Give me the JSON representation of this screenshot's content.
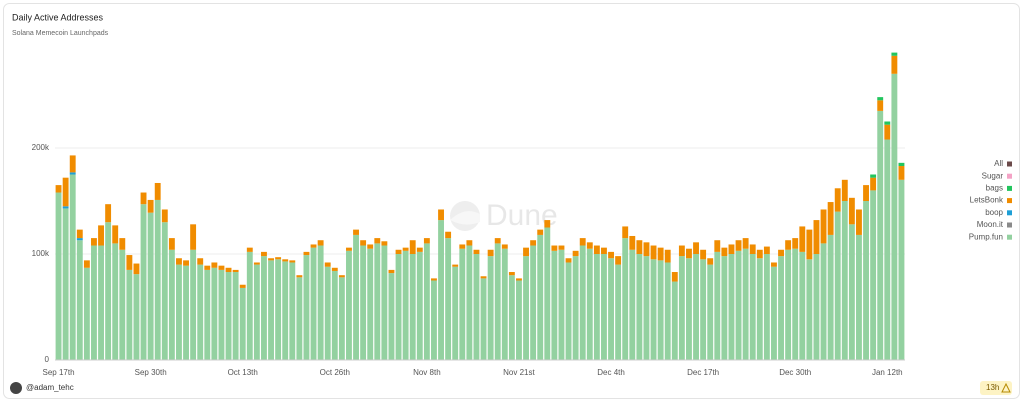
{
  "chart_data": {
    "type": "stacked-bar",
    "title": "Daily Active Addresses",
    "subtitle": "Solana Memecoin Launchpads",
    "watermark": "Dune",
    "author": "@adam_tehc",
    "updated": "13h",
    "legend": "right",
    "grid": true,
    "ylim": [
      0,
      300000
    ],
    "yticks": [
      0,
      {
        "value": 100000,
        "label": "100k"
      },
      {
        "value": 200000,
        "label": "200k"
      }
    ],
    "categories": [
      "Sep 17th",
      null,
      null,
      null,
      null,
      null,
      null,
      null,
      null,
      null,
      null,
      null,
      null,
      "Sep 30th",
      null,
      null,
      null,
      null,
      null,
      null,
      null,
      null,
      null,
      null,
      null,
      null,
      "Oct 13th",
      null,
      null,
      null,
      null,
      null,
      null,
      null,
      null,
      null,
      null,
      null,
      null,
      "Oct 26th",
      null,
      null,
      null,
      null,
      null,
      null,
      null,
      null,
      null,
      null,
      null,
      null,
      "Nov 8th",
      null,
      null,
      null,
      null,
      null,
      null,
      null,
      null,
      null,
      null,
      null,
      null,
      "Nov 21st",
      null,
      null,
      null,
      null,
      null,
      null,
      null,
      null,
      null,
      null,
      null,
      null,
      "Dec 4th",
      null,
      null,
      null,
      null,
      null,
      null,
      null,
      null,
      null,
      null,
      null,
      null,
      "Dec 17th",
      null,
      null,
      null,
      null,
      null,
      null,
      null,
      null,
      null,
      null,
      null,
      null,
      "Dec 30th",
      null,
      null,
      null,
      null,
      null,
      null,
      null,
      null,
      null,
      null,
      null,
      null,
      "Jan 12th",
      null,
      null
    ],
    "series": [
      {
        "name": "Pump.fun",
        "color": "#93d1a0",
        "values": [
          158000,
          143000,
          175000,
          113000,
          87000,
          108000,
          108000,
          130000,
          110000,
          104000,
          85000,
          81000,
          147000,
          139000,
          151000,
          130000,
          104000,
          90000,
          89000,
          104000,
          90000,
          85000,
          87000,
          85000,
          83000,
          83000,
          68000,
          102000,
          90000,
          98000,
          94000,
          95000,
          93000,
          92000,
          78000,
          99000,
          106000,
          108000,
          88000,
          84000,
          78000,
          103000,
          118000,
          108000,
          105000,
          110000,
          108000,
          82000,
          100000,
          103000,
          100000,
          102000,
          110000,
          75000,
          132000,
          115000,
          88000,
          105000,
          108000,
          100000,
          77000,
          98000,
          110000,
          105000,
          80000,
          75000,
          98000,
          108000,
          118000,
          125000,
          103000,
          104000,
          92000,
          98000,
          108000,
          105000,
          100000,
          100000,
          96000,
          90000,
          115000,
          104000,
          100000,
          98000,
          95000,
          94000,
          92000,
          74000,
          98000,
          96000,
          100000,
          95000,
          90000,
          102000,
          98000,
          100000,
          103000,
          105000,
          100000,
          96000,
          100000,
          88000,
          98000,
          104000,
          105000,
          102000,
          95000,
          100000,
          110000,
          118000,
          140000,
          150000,
          128000,
          118000,
          150000,
          160000,
          235000,
          208000,
          270000,
          170000
        ]
      },
      {
        "name": "Moon.it",
        "color": "#8a8a8a",
        "values": [
          0,
          0,
          0,
          0,
          0,
          0,
          0,
          0,
          0,
          0,
          0,
          0,
          0,
          0,
          0,
          0,
          0,
          0,
          0,
          0,
          0,
          0,
          0,
          0,
          0,
          0,
          0,
          0,
          0,
          0,
          0,
          0,
          0,
          0,
          0,
          0,
          0,
          0,
          0,
          0,
          0,
          0,
          0,
          0,
          0,
          0,
          0,
          0,
          0,
          0,
          0,
          0,
          0,
          0,
          0,
          0,
          0,
          0,
          0,
          0,
          0,
          0,
          0,
          0,
          0,
          0,
          0,
          0,
          0,
          0,
          0,
          0,
          0,
          0,
          0,
          0,
          0,
          0,
          0,
          0,
          0,
          0,
          0,
          0,
          0,
          0,
          0,
          0,
          0,
          0,
          0,
          0,
          0,
          0,
          0,
          0,
          0,
          0,
          0,
          0,
          0,
          0,
          0,
          0,
          0,
          0,
          0,
          0,
          0,
          0,
          0,
          0,
          0,
          0,
          0,
          0,
          0,
          0,
          0,
          0
        ]
      },
      {
        "name": "boop",
        "color": "#1e9fd6",
        "values": [
          0,
          2000,
          2000,
          2000,
          0,
          0,
          0,
          0,
          0,
          0,
          0,
          0,
          0,
          0,
          0,
          0,
          0,
          0,
          0,
          0,
          0,
          0,
          0,
          0,
          0,
          0,
          0,
          0,
          0,
          0,
          0,
          0,
          0,
          0,
          0,
          0,
          0,
          0,
          0,
          0,
          0,
          0,
          0,
          0,
          0,
          0,
          0,
          0,
          0,
          0,
          0,
          0,
          0,
          0,
          0,
          0,
          0,
          0,
          0,
          0,
          0,
          0,
          0,
          0,
          0,
          0,
          0,
          0,
          0,
          0,
          0,
          0,
          0,
          0,
          0,
          0,
          0,
          0,
          0,
          0,
          0,
          0,
          0,
          0,
          0,
          0,
          0,
          0,
          0,
          0,
          0,
          0,
          0,
          0,
          0,
          0,
          0,
          0,
          0,
          0,
          0,
          0,
          0,
          0,
          0,
          0,
          0,
          0,
          0,
          0,
          0,
          0,
          0,
          0,
          0,
          0,
          0,
          0,
          0,
          0
        ]
      },
      {
        "name": "LetsBonk",
        "color": "#f08c00",
        "values": [
          7000,
          27000,
          16000,
          8000,
          7000,
          7000,
          19000,
          17000,
          17000,
          11000,
          14000,
          10000,
          11000,
          12000,
          16000,
          12000,
          11000,
          6000,
          5000,
          24000,
          6000,
          4000,
          5000,
          4000,
          4000,
          2000,
          3000,
          4000,
          2000,
          4000,
          2000,
          2000,
          2000,
          2000,
          2000,
          3000,
          3000,
          5000,
          4000,
          3000,
          2000,
          3000,
          5000,
          5000,
          4000,
          5000,
          4000,
          3000,
          4000,
          3000,
          13000,
          4000,
          5000,
          2000,
          10000,
          6000,
          2000,
          4000,
          5000,
          4000,
          2000,
          6000,
          5000,
          4000,
          3000,
          2000,
          8000,
          5000,
          5000,
          7000,
          5000,
          4000,
          4000,
          5000,
          7000,
          6000,
          8000,
          6000,
          6000,
          8000,
          11000,
          13000,
          13000,
          13000,
          13000,
          12000,
          12000,
          9000,
          10000,
          9000,
          11000,
          9000,
          6000,
          11000,
          8000,
          9000,
          10000,
          10000,
          9000,
          8000,
          7000,
          4000,
          6000,
          9000,
          10000,
          24000,
          28000,
          32000,
          32000,
          31000,
          22000,
          20000,
          25000,
          24000,
          15000,
          12000,
          10000,
          14000,
          17000,
          13000
        ]
      },
      {
        "name": "bags",
        "color": "#22c55e",
        "values": [
          0,
          0,
          0,
          0,
          0,
          0,
          0,
          0,
          0,
          0,
          0,
          0,
          0,
          0,
          0,
          0,
          0,
          0,
          0,
          0,
          0,
          0,
          0,
          0,
          0,
          0,
          0,
          0,
          0,
          0,
          0,
          0,
          0,
          0,
          0,
          0,
          0,
          0,
          0,
          0,
          0,
          0,
          0,
          0,
          0,
          0,
          0,
          0,
          0,
          0,
          0,
          0,
          0,
          0,
          0,
          0,
          0,
          0,
          0,
          0,
          0,
          0,
          0,
          0,
          0,
          0,
          0,
          0,
          0,
          0,
          0,
          0,
          0,
          0,
          0,
          0,
          0,
          0,
          0,
          0,
          0,
          0,
          0,
          0,
          0,
          0,
          0,
          0,
          0,
          0,
          0,
          0,
          0,
          0,
          0,
          0,
          0,
          0,
          0,
          0,
          0,
          0,
          0,
          0,
          0,
          0,
          0,
          0,
          0,
          0,
          0,
          0,
          0,
          0,
          0,
          3000,
          3000,
          3000,
          3000,
          3000
        ]
      },
      {
        "name": "Sugar",
        "color": "#f4a3c6",
        "values": [
          0,
          0,
          0,
          0,
          0,
          0,
          0,
          0,
          0,
          0,
          0,
          0,
          0,
          0,
          0,
          0,
          0,
          0,
          0,
          0,
          0,
          0,
          0,
          0,
          0,
          0,
          0,
          0,
          0,
          0,
          0,
          0,
          0,
          0,
          0,
          0,
          0,
          0,
          0,
          0,
          0,
          0,
          0,
          0,
          0,
          0,
          0,
          0,
          0,
          0,
          0,
          0,
          0,
          0,
          0,
          0,
          0,
          0,
          0,
          0,
          0,
          0,
          0,
          0,
          0,
          0,
          0,
          0,
          0,
          0,
          0,
          0,
          0,
          0,
          0,
          0,
          0,
          0,
          0,
          0,
          0,
          0,
          0,
          0,
          0,
          0,
          0,
          0,
          0,
          0,
          0,
          0,
          0,
          0,
          0,
          0,
          0,
          0,
          0,
          0,
          0,
          0,
          0,
          0,
          0,
          0,
          0,
          0,
          0,
          0,
          0,
          0,
          0,
          0,
          0,
          0,
          0,
          0,
          0,
          0
        ]
      },
      {
        "name": "All",
        "color": "#6b4a4a",
        "values": [
          0,
          0,
          0,
          0,
          0,
          0,
          0,
          0,
          0,
          0,
          0,
          0,
          0,
          0,
          0,
          0,
          0,
          0,
          0,
          0,
          0,
          0,
          0,
          0,
          0,
          0,
          0,
          0,
          0,
          0,
          0,
          0,
          0,
          0,
          0,
          0,
          0,
          0,
          0,
          0,
          0,
          0,
          0,
          0,
          0,
          0,
          0,
          0,
          0,
          0,
          0,
          0,
          0,
          0,
          0,
          0,
          0,
          0,
          0,
          0,
          0,
          0,
          0,
          0,
          0,
          0,
          0,
          0,
          0,
          0,
          0,
          0,
          0,
          0,
          0,
          0,
          0,
          0,
          0,
          0,
          0,
          0,
          0,
          0,
          0,
          0,
          0,
          0,
          0,
          0,
          0,
          0,
          0,
          0,
          0,
          0,
          0,
          0,
          0,
          0,
          0,
          0,
          0,
          0,
          0,
          0,
          0,
          0,
          0,
          0,
          0,
          0,
          0,
          0,
          0,
          0,
          0,
          0,
          0,
          0
        ]
      }
    ]
  }
}
